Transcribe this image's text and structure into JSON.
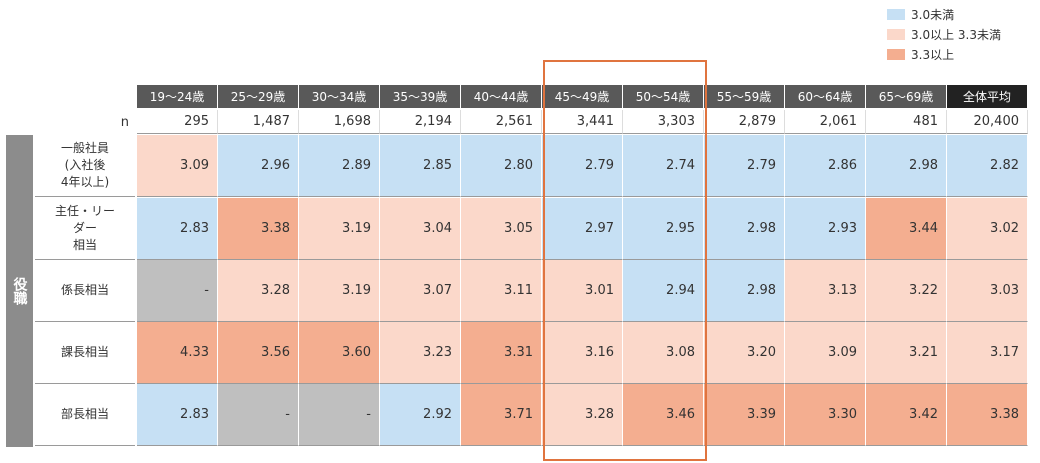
{
  "legend": [
    {
      "label": "3.0未満",
      "color": "#c6e0f4"
    },
    {
      "label": "3.0以上 3.3未満",
      "color": "#fbd8ca"
    },
    {
      "label": "3.3以上",
      "color": "#f4ae90"
    }
  ],
  "table": {
    "columns": [
      "19～24歳",
      "25～29歳",
      "30～34歳",
      "35～39歳",
      "40～44歳",
      "45～49歳",
      "50～54歳",
      "55～59歳",
      "60～64歳",
      "65～69歳",
      "全体平均"
    ],
    "n_label": "n",
    "n_values": [
      "295",
      "1,487",
      "1,698",
      "2,194",
      "2,561",
      "3,441",
      "3,303",
      "2,879",
      "2,061",
      "481",
      "20,400"
    ],
    "side_label": "役職",
    "rows": [
      {
        "label": "一般社員\n(入社後\n4年以上)",
        "cells": [
          "3.09",
          "2.96",
          "2.89",
          "2.85",
          "2.80",
          "2.79",
          "2.74",
          "2.79",
          "2.86",
          "2.98",
          "2.82"
        ],
        "colors": [
          "#fbd8ca",
          "#c6e0f4",
          "#c6e0f4",
          "#c6e0f4",
          "#c6e0f4",
          "#c6e0f4",
          "#c6e0f4",
          "#c6e0f4",
          "#c6e0f4",
          "#c6e0f4",
          "#c6e0f4"
        ]
      },
      {
        "label": "主任・リー\nダー\n相当",
        "cells": [
          "2.83",
          "3.38",
          "3.19",
          "3.04",
          "3.05",
          "2.97",
          "2.95",
          "2.98",
          "2.93",
          "3.44",
          "3.02"
        ],
        "colors": [
          "#c6e0f4",
          "#f4ae90",
          "#fbd8ca",
          "#fbd8ca",
          "#fbd8ca",
          "#c6e0f4",
          "#c6e0f4",
          "#c6e0f4",
          "#c6e0f4",
          "#f4ae90",
          "#fbd8ca"
        ]
      },
      {
        "label": "係長相当",
        "cells": [
          "-",
          "3.28",
          "3.19",
          "3.07",
          "3.11",
          "3.01",
          "2.94",
          "2.98",
          "3.13",
          "3.22",
          "3.03"
        ],
        "colors": [
          "#bfbfbf",
          "#fbd8ca",
          "#fbd8ca",
          "#fbd8ca",
          "#fbd8ca",
          "#fbd8ca",
          "#c6e0f4",
          "#c6e0f4",
          "#fbd8ca",
          "#fbd8ca",
          "#fbd8ca"
        ]
      },
      {
        "label": "課長相当",
        "cells": [
          "4.33",
          "3.56",
          "3.60",
          "3.23",
          "3.31",
          "3.16",
          "3.08",
          "3.20",
          "3.09",
          "3.21",
          "3.17"
        ],
        "colors": [
          "#f4ae90",
          "#f4ae90",
          "#f4ae90",
          "#fbd8ca",
          "#f4ae90",
          "#fbd8ca",
          "#fbd8ca",
          "#fbd8ca",
          "#fbd8ca",
          "#fbd8ca",
          "#fbd8ca"
        ]
      },
      {
        "label": "部長相当",
        "cells": [
          "2.83",
          "-",
          "-",
          "2.92",
          "3.71",
          "3.28",
          "3.46",
          "3.39",
          "3.30",
          "3.42",
          "3.38"
        ],
        "colors": [
          "#c6e0f4",
          "#bfbfbf",
          "#bfbfbf",
          "#c6e0f4",
          "#f4ae90",
          "#fbd8ca",
          "#f4ae90",
          "#f4ae90",
          "#f4ae90",
          "#f4ae90",
          "#f4ae90"
        ]
      }
    ]
  }
}
